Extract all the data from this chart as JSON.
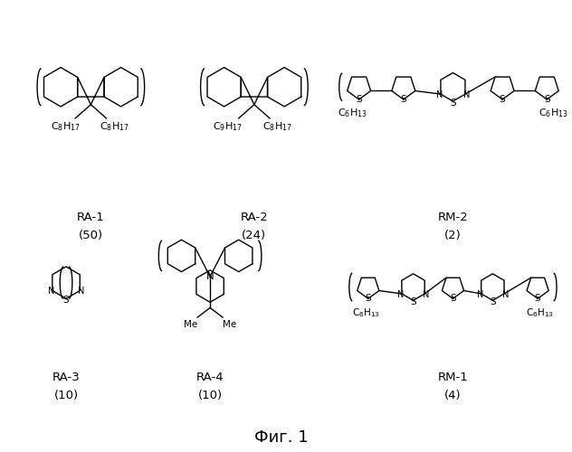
{
  "background_color": "#ffffff",
  "title": "Фиг. 1",
  "title_fontsize": 13,
  "label_ra1": "RA-1",
  "label_ra2": "RA-2",
  "label_rm2": "RM-2",
  "label_ra3": "RA-3",
  "label_ra4": "RA-4",
  "label_rm1": "RM-1",
  "val_ra1": "(50)",
  "val_ra2": "(24)",
  "val_rm2": "(2)",
  "val_ra3": "(10)",
  "val_ra4": "(10)",
  "val_rm1": "(4)"
}
